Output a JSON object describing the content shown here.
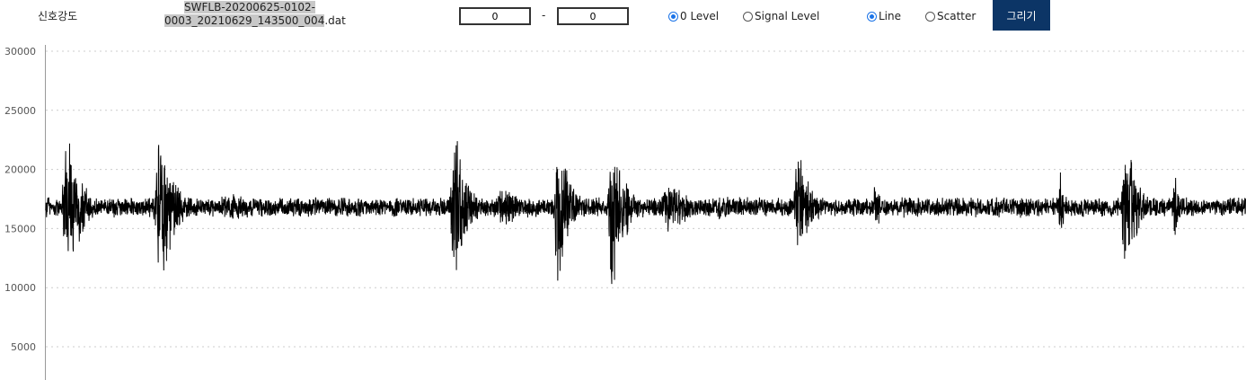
{
  "toolbar": {
    "title": "신호강도",
    "file_name_highlight_1": "SWFLB-20200625-0102-",
    "file_name_highlight_2": "0003_20210629_143500_004",
    "file_name_ext": ".dat",
    "range_start": "0",
    "range_sep": "-",
    "range_end": "0",
    "radio_zero_level": "0 Level",
    "radio_signal_level": "Signal Level",
    "radio_line": "Line",
    "radio_scatter": "Scatter",
    "draw_button": "그리기",
    "selected_level": "0 Level",
    "selected_mode": "Line"
  },
  "chart_data": {
    "type": "line",
    "ylim": [
      2000,
      30000
    ],
    "yticks": [
      "30000",
      "25000",
      "20000",
      "15000",
      "10000",
      "5000"
    ],
    "grid": true,
    "baseline": 16800,
    "line_color": "#000000",
    "bursts": [
      {
        "x": 0.0,
        "amp": 1500,
        "width": 0.01
      },
      {
        "x": 0.02,
        "amp": 7500,
        "width": 0.015
      },
      {
        "x": 0.105,
        "amp": 8000,
        "width": 0.015
      },
      {
        "x": 0.17,
        "amp": 1300,
        "width": 0.06
      },
      {
        "x": 0.28,
        "amp": 150,
        "width": 0.1
      },
      {
        "x": 0.375,
        "amp": 8500,
        "width": 0.012
      },
      {
        "x": 0.42,
        "amp": 2000,
        "width": 0.03
      },
      {
        "x": 0.47,
        "amp": 8500,
        "width": 0.012
      },
      {
        "x": 0.52,
        "amp": 9000,
        "width": 0.012
      },
      {
        "x": 0.57,
        "amp": 2500,
        "width": 0.03
      },
      {
        "x": 0.62,
        "amp": 1200,
        "width": 0.03
      },
      {
        "x": 0.69,
        "amp": 6500,
        "width": 0.012
      },
      {
        "x": 0.76,
        "amp": 3000,
        "width": 0.006
      },
      {
        "x": 0.8,
        "amp": 1000,
        "width": 0.01
      },
      {
        "x": 0.93,
        "amp": 3000,
        "width": 0.006
      },
      {
        "x": 0.99,
        "amp": 7000,
        "width": 0.012
      },
      {
        "x": 1.035,
        "amp": 3500,
        "width": 0.006
      },
      {
        "x": 1.08,
        "amp": 800,
        "width": 0.01
      }
    ]
  }
}
